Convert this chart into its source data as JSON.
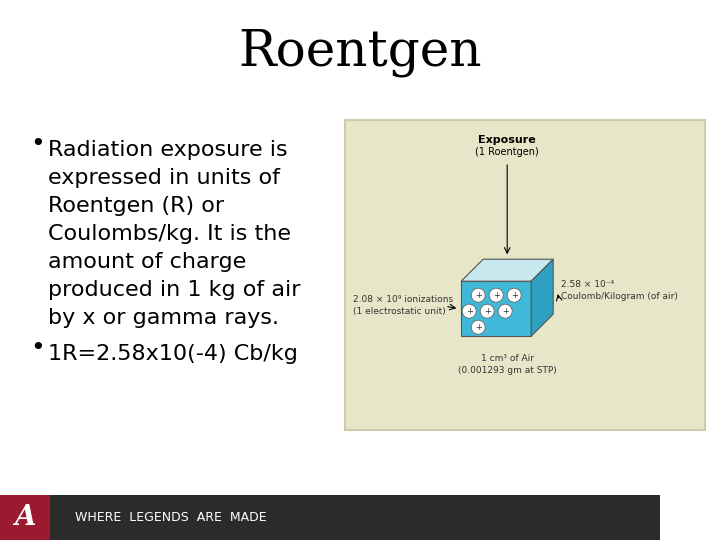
{
  "title": "Roentgen",
  "title_fontsize": 36,
  "title_font": "DejaVu Serif",
  "bullet1_lines": [
    "Radiation exposure is",
    "expressed in units of",
    "Roentgen (R) or",
    "Coulombs/kg. It is the",
    "amount of charge",
    "produced in 1 kg of air",
    "by x or gamma rays."
  ],
  "bullet2": "1R=2.58x10(-4) Cb/kg",
  "bullet_fontsize": 16,
  "bg_color": "#ffffff",
  "footer_bg": "#2b2b2b",
  "footer_text": "WHERE  LEGENDS  ARE  MADE",
  "footer_text_color": "#ffffff",
  "footer_fontsize": 9,
  "alabama_a_color": "#9b1a2f",
  "diagram_bg": "#e8e6c8",
  "diagram_border": "#ccccaa",
  "cube_face_top": "#c8e8f0",
  "cube_face_front": "#40b8d8",
  "cube_face_right": "#30a0c0",
  "text_color": "#000000",
  "diagram_label_fontsize": 7
}
